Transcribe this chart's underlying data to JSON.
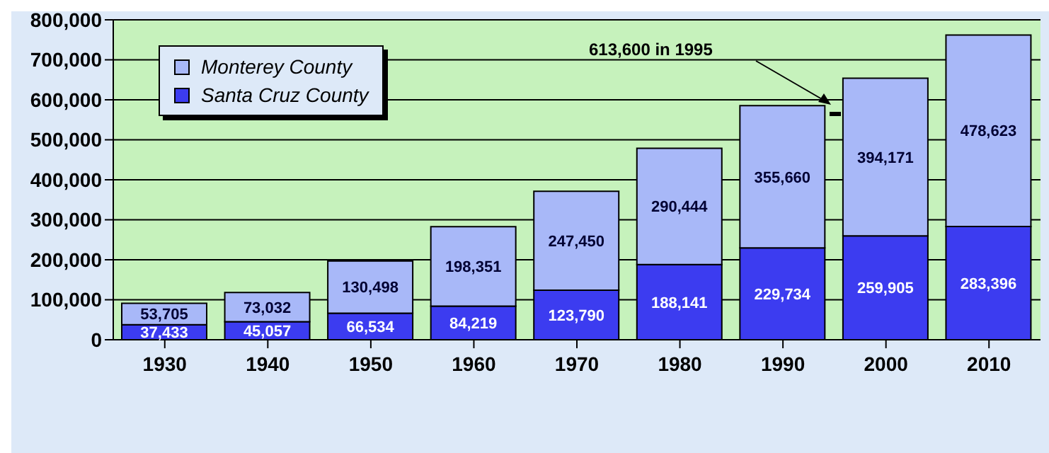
{
  "chart_data": {
    "type": "bar",
    "stacked": true,
    "categories": [
      "1930",
      "1940",
      "1950",
      "1960",
      "1970",
      "1980",
      "1990",
      "2000",
      "2010"
    ],
    "series": [
      {
        "name": "Santa Cruz County",
        "color": "#3c3cf0",
        "values": [
          37433,
          45057,
          66534,
          84219,
          123790,
          188141,
          229734,
          259905,
          283396
        ],
        "value_labels": [
          "37,433",
          "45,057",
          "66,534",
          "84,219",
          "123,790",
          "188,141",
          "229,734",
          "259,905",
          "283,396"
        ]
      },
      {
        "name": "Monterey County",
        "color": "#a8b8f8",
        "values": [
          53705,
          73032,
          130498,
          198351,
          247450,
          290444,
          355660,
          394171,
          478623
        ],
        "value_labels": [
          "53,705",
          "73,032",
          "130,498",
          "198,351",
          "247,450",
          "290,444",
          "355,660",
          "394,171",
          "478,623"
        ]
      }
    ],
    "ylim": [
      0,
      800000
    ],
    "yticks": [
      {
        "value": 0,
        "label": "0"
      },
      {
        "value": 100000,
        "label": "100,000"
      },
      {
        "value": 200000,
        "label": "200,000"
      },
      {
        "value": 300000,
        "label": "300,000"
      },
      {
        "value": 400000,
        "label": "400,000"
      },
      {
        "value": 500000,
        "label": "500,000"
      },
      {
        "value": 600000,
        "label": "600,000"
      },
      {
        "value": 700000,
        "label": "700,000"
      },
      {
        "value": 800000,
        "label": "800,000"
      }
    ],
    "grid": "y",
    "legend": "top left",
    "annotations": [
      "613,600 in 1995"
    ]
  }
}
